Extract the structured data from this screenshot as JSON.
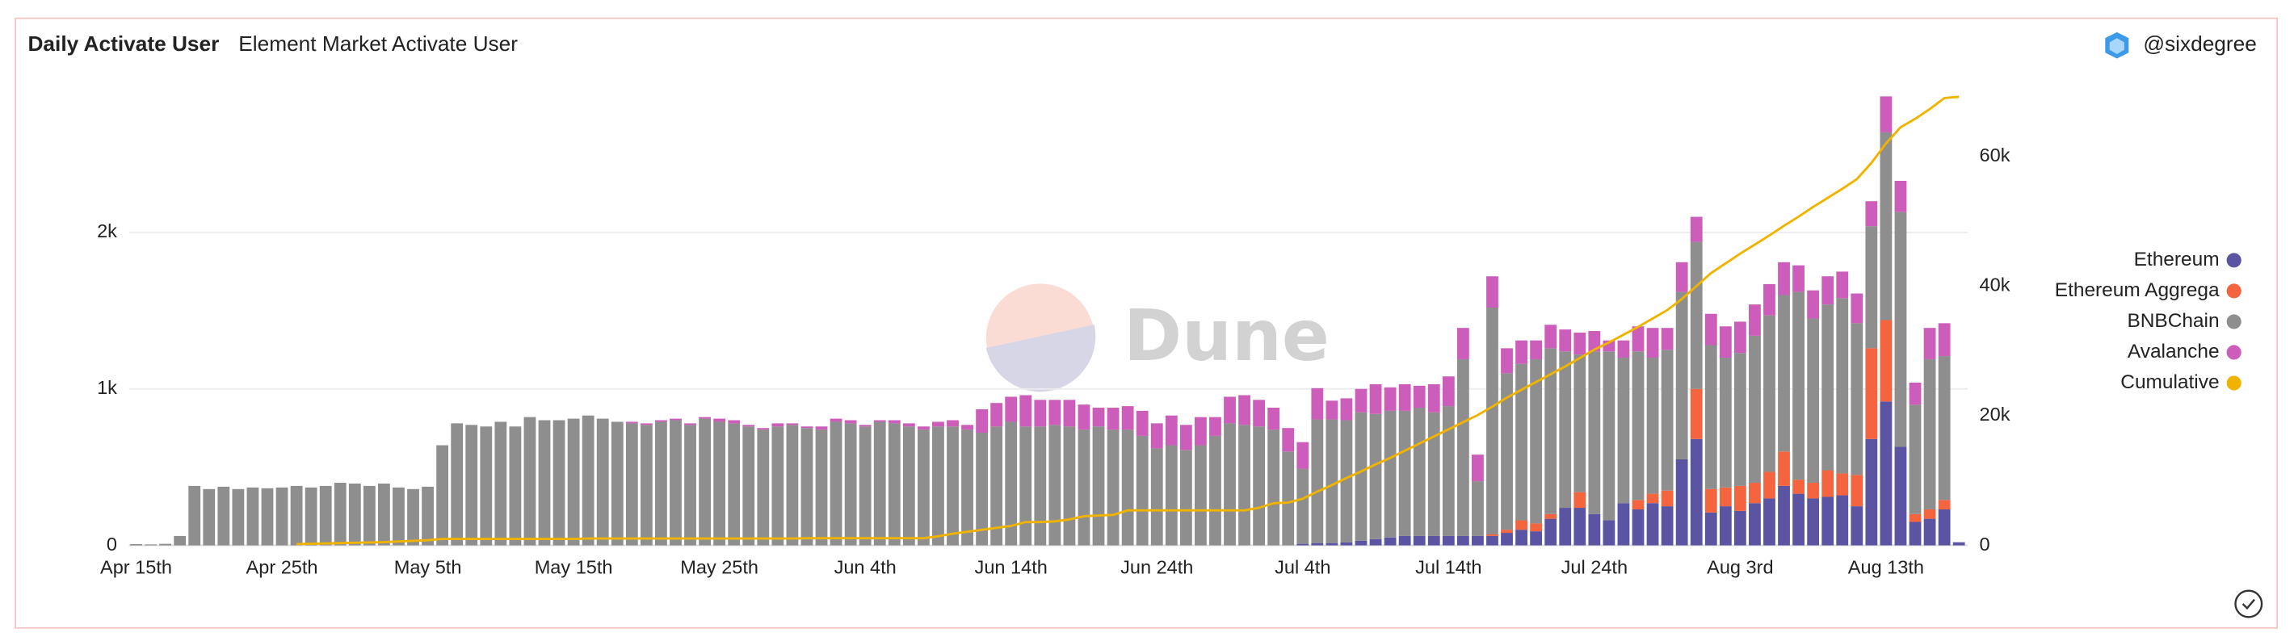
{
  "author": "@sixdegree",
  "chart_data": {
    "type": "bar",
    "stacked": true,
    "title": "Daily Activate User",
    "subtitle": "Element Market Activate User",
    "watermark": "Dune",
    "categories": [
      "Apr 15th",
      null,
      null,
      null,
      null,
      null,
      null,
      null,
      null,
      null,
      "Apr 25th",
      null,
      null,
      null,
      null,
      null,
      null,
      null,
      null,
      null,
      "May 5th",
      null,
      null,
      null,
      null,
      null,
      null,
      null,
      null,
      null,
      "May 15th",
      null,
      null,
      null,
      null,
      null,
      null,
      null,
      null,
      null,
      "May 25th",
      null,
      null,
      null,
      null,
      null,
      null,
      null,
      null,
      null,
      "Jun 4th",
      null,
      null,
      null,
      null,
      null,
      null,
      null,
      null,
      null,
      "Jun 14th",
      null,
      null,
      null,
      null,
      null,
      null,
      null,
      null,
      null,
      "Jun 24th",
      null,
      null,
      null,
      null,
      null,
      null,
      null,
      null,
      null,
      "Jul 4th",
      null,
      null,
      null,
      null,
      null,
      null,
      null,
      null,
      null,
      "Jul 14th",
      null,
      null,
      null,
      null,
      null,
      null,
      null,
      null,
      null,
      "Jul 24th",
      null,
      null,
      null,
      null,
      null,
      null,
      null,
      null,
      null,
      "Aug 3rd",
      null,
      null,
      null,
      null,
      null,
      null,
      null,
      null,
      null,
      "Aug 13th",
      null,
      null,
      null,
      null,
      null
    ],
    "ylim": [
      0,
      3000
    ],
    "yticks": [
      0,
      {
        "value": 1000,
        "label": "1k"
      },
      {
        "value": 2000,
        "label": "2k"
      }
    ],
    "y2lim": [
      0,
      72400
    ],
    "y2ticks": [
      0,
      {
        "value": 20000,
        "label": "20k"
      },
      {
        "value": 40000,
        "label": "40k"
      },
      {
        "value": 60000,
        "label": "60k"
      }
    ],
    "grid": true,
    "legend": "right",
    "series": [
      {
        "name": "Ethereum",
        "color": "#5b54a3",
        "values": [
          0,
          0,
          0,
          0,
          0,
          0,
          0,
          0,
          0,
          0,
          0,
          0,
          0,
          0,
          0,
          0,
          0,
          0,
          0,
          0,
          0,
          0,
          0,
          0,
          0,
          0,
          0,
          0,
          0,
          0,
          0,
          0,
          0,
          0,
          0,
          0,
          0,
          0,
          0,
          0,
          0,
          0,
          0,
          0,
          0,
          0,
          0,
          0,
          0,
          0,
          0,
          0,
          0,
          0,
          0,
          0,
          0,
          0,
          0,
          0,
          0,
          0,
          0,
          0,
          0,
          0,
          0,
          0,
          0,
          0,
          0,
          0,
          0,
          0,
          0,
          0,
          0,
          0,
          0,
          0,
          10,
          15,
          15,
          20,
          30,
          40,
          50,
          60,
          60,
          60,
          60,
          60,
          60,
          60,
          80,
          100,
          90,
          170,
          240,
          240,
          200,
          160,
          270,
          230,
          270,
          250,
          550,
          680,
          210,
          250,
          220,
          270,
          300,
          380,
          330,
          300,
          310,
          320,
          250,
          680,
          920,
          630,
          150,
          170,
          230,
          20
        ]
      },
      {
        "name": "Ethereum Aggrega",
        "color": "#f3643f",
        "values": [
          0,
          0,
          0,
          0,
          0,
          0,
          0,
          0,
          0,
          0,
          0,
          0,
          0,
          0,
          0,
          0,
          0,
          0,
          0,
          0,
          0,
          0,
          0,
          0,
          0,
          0,
          0,
          0,
          0,
          0,
          0,
          0,
          0,
          0,
          0,
          0,
          0,
          0,
          0,
          0,
          0,
          0,
          0,
          0,
          0,
          0,
          0,
          0,
          0,
          0,
          0,
          0,
          0,
          0,
          0,
          0,
          0,
          0,
          0,
          0,
          0,
          0,
          0,
          0,
          0,
          0,
          0,
          0,
          0,
          0,
          0,
          0,
          0,
          0,
          0,
          0,
          0,
          0,
          0,
          0,
          0,
          0,
          0,
          0,
          0,
          0,
          0,
          0,
          0,
          0,
          0,
          0,
          0,
          10,
          20,
          60,
          50,
          30,
          0,
          100,
          0,
          0,
          0,
          60,
          60,
          100,
          0,
          320,
          150,
          120,
          160,
          130,
          170,
          220,
          90,
          100,
          170,
          140,
          200,
          580,
          520,
          0,
          50,
          60,
          60,
          0
        ]
      },
      {
        "name": "BNBChain",
        "color": "#8e8e8e",
        "values": [
          8,
          6,
          10,
          60,
          380,
          360,
          375,
          360,
          370,
          365,
          370,
          380,
          370,
          380,
          400,
          395,
          380,
          395,
          370,
          360,
          375,
          640,
          780,
          770,
          760,
          790,
          760,
          820,
          800,
          800,
          810,
          830,
          810,
          790,
          780,
          770,
          790,
          800,
          770,
          810,
          790,
          780,
          760,
          740,
          760,
          770,
          750,
          740,
          790,
          780,
          760,
          790,
          780,
          760,
          740,
          760,
          760,
          740,
          720,
          760,
          790,
          760,
          760,
          770,
          760,
          740,
          760,
          740,
          740,
          700,
          620,
          640,
          610,
          640,
          700,
          780,
          770,
          760,
          740,
          600,
          480,
          790,
          790,
          780,
          820,
          800,
          810,
          800,
          820,
          790,
          830,
          1130,
          350,
          1450,
          1000,
          1000,
          1050,
          1060,
          1000,
          880,
          1040,
          1080,
          930,
          950,
          870,
          900,
          1070,
          940,
          920,
          830,
          850,
          940,
          1000,
          1000,
          1200,
          1050,
          1060,
          1120,
          970,
          780,
          1200,
          1500,
          700,
          960,
          920,
          0
        ]
      },
      {
        "name": "Avalanche",
        "color": "#cc5dba",
        "values": [
          0,
          0,
          0,
          0,
          0,
          0,
          0,
          0,
          0,
          0,
          0,
          0,
          0,
          0,
          0,
          0,
          0,
          0,
          0,
          0,
          0,
          0,
          0,
          0,
          0,
          0,
          0,
          0,
          0,
          0,
          0,
          0,
          0,
          0,
          10,
          10,
          10,
          10,
          10,
          10,
          20,
          20,
          10,
          10,
          20,
          10,
          10,
          20,
          20,
          20,
          10,
          10,
          20,
          20,
          20,
          30,
          40,
          30,
          150,
          150,
          160,
          200,
          170,
          160,
          170,
          160,
          120,
          140,
          150,
          160,
          160,
          190,
          160,
          180,
          120,
          170,
          190,
          170,
          140,
          150,
          170,
          200,
          120,
          140,
          150,
          190,
          150,
          170,
          140,
          180,
          190,
          200,
          170,
          200,
          160,
          150,
          120,
          150,
          140,
          140,
          130,
          70,
          110,
          160,
          190,
          140,
          190,
          160,
          200,
          200,
          200,
          200,
          200,
          210,
          170,
          180,
          180,
          170,
          190,
          160,
          230,
          200,
          140,
          200,
          210,
          0
        ]
      },
      {
        "name": "Cumulative",
        "color": "#f0b400",
        "type": "line",
        "axis": "y2",
        "values": [
          null,
          null,
          null,
          null,
          null,
          null,
          null,
          null,
          null,
          null,
          null,
          200,
          250,
          300,
          350,
          400,
          450,
          500,
          600,
          700,
          800,
          1000,
          1000,
          1000,
          1000,
          1000,
          1000,
          1000,
          1000,
          1000,
          1000,
          1050,
          1050,
          1050,
          1050,
          1050,
          1050,
          1050,
          1050,
          1050,
          1050,
          1050,
          1050,
          1050,
          1050,
          1050,
          1100,
          1100,
          1100,
          1100,
          1100,
          1100,
          1100,
          1100,
          1100,
          1400,
          1800,
          2100,
          2400,
          2700,
          3000,
          3600,
          3600,
          3700,
          4000,
          4500,
          4600,
          4700,
          5400,
          5400,
          5400,
          5400,
          5400,
          5400,
          5400,
          5400,
          5400,
          5800,
          6500,
          6600,
          7200,
          8300,
          9300,
          10400,
          11400,
          12500,
          13500,
          14600,
          15700,
          16800,
          17900,
          19000,
          20100,
          21400,
          22800,
          24000,
          25200,
          26400,
          27600,
          28900,
          30200,
          31300,
          32500,
          33700,
          35000,
          36300,
          38000,
          40000,
          42000,
          43500,
          45000,
          46400,
          47800,
          49300,
          50700,
          52200,
          53600,
          55000,
          56500,
          59000,
          62000,
          64500,
          65800,
          67300,
          69000,
          69200
        ]
      }
    ]
  }
}
